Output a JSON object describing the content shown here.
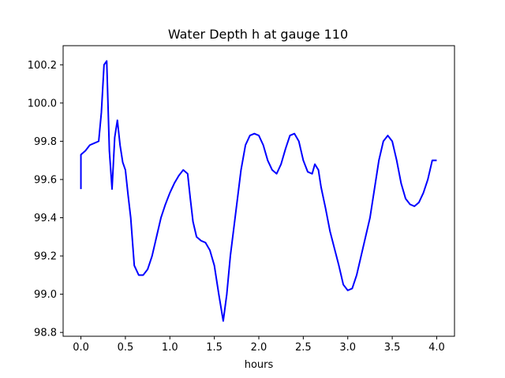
{
  "chart_data": {
    "type": "line",
    "title": "Water Depth h at gauge 110",
    "xlabel": "hours",
    "ylabel": "",
    "xlim": [
      -0.2,
      4.2
    ],
    "ylim": [
      98.78,
      100.3
    ],
    "xticks": [
      0.0,
      0.5,
      1.0,
      1.5,
      2.0,
      2.5,
      3.0,
      3.5,
      4.0
    ],
    "xtick_labels": [
      "0.0",
      "0.5",
      "1.0",
      "1.5",
      "2.0",
      "2.5",
      "3.0",
      "3.5",
      "4.0"
    ],
    "yticks": [
      98.8,
      99.0,
      99.2,
      99.4,
      99.6,
      99.8,
      100.0,
      100.2
    ],
    "ytick_labels": [
      "98.8",
      "99.0",
      "99.2",
      "99.4",
      "99.6",
      "99.8",
      "100.0",
      "100.2"
    ],
    "grid": false,
    "series": [
      {
        "color": "#0000ff",
        "x": [
          0.0,
          0.0,
          0.05,
          0.1,
          0.15,
          0.2,
          0.23,
          0.26,
          0.29,
          0.32,
          0.35,
          0.38,
          0.41,
          0.44,
          0.47,
          0.5,
          0.53,
          0.56,
          0.6,
          0.65,
          0.7,
          0.75,
          0.8,
          0.85,
          0.9,
          0.95,
          1.0,
          1.05,
          1.1,
          1.15,
          1.2,
          1.23,
          1.26,
          1.3,
          1.35,
          1.4,
          1.45,
          1.5,
          1.55,
          1.6,
          1.64,
          1.68,
          1.72,
          1.76,
          1.8,
          1.85,
          1.9,
          1.95,
          2.0,
          2.05,
          2.1,
          2.15,
          2.2,
          2.25,
          2.3,
          2.35,
          2.4,
          2.45,
          2.5,
          2.55,
          2.6,
          2.63,
          2.67,
          2.7,
          2.75,
          2.8,
          2.85,
          2.9,
          2.95,
          3.0,
          3.05,
          3.1,
          3.15,
          3.2,
          3.25,
          3.3,
          3.35,
          3.4,
          3.45,
          3.5,
          3.55,
          3.6,
          3.65,
          3.7,
          3.75,
          3.8,
          3.85,
          3.9,
          3.95,
          4.0
        ],
        "y": [
          99.55,
          99.73,
          99.75,
          99.78,
          99.79,
          99.8,
          99.95,
          100.2,
          100.22,
          99.75,
          99.55,
          99.82,
          99.91,
          99.78,
          99.69,
          99.65,
          99.52,
          99.4,
          99.15,
          99.1,
          99.1,
          99.13,
          99.2,
          99.3,
          99.4,
          99.47,
          99.53,
          99.58,
          99.62,
          99.65,
          99.63,
          99.5,
          99.38,
          99.3,
          99.28,
          99.27,
          99.23,
          99.15,
          99.0,
          98.86,
          99.0,
          99.2,
          99.35,
          99.5,
          99.65,
          99.78,
          99.83,
          99.84,
          99.83,
          99.78,
          99.7,
          99.65,
          99.63,
          99.68,
          99.76,
          99.83,
          99.84,
          99.8,
          99.7,
          99.64,
          99.63,
          99.68,
          99.65,
          99.56,
          99.45,
          99.33,
          99.24,
          99.15,
          99.05,
          99.02,
          99.03,
          99.1,
          99.2,
          99.3,
          99.4,
          99.55,
          99.7,
          99.8,
          99.83,
          99.8,
          99.7,
          99.58,
          99.5,
          99.47,
          99.46,
          99.48,
          99.53,
          99.6,
          99.7,
          99.7
        ]
      }
    ]
  }
}
